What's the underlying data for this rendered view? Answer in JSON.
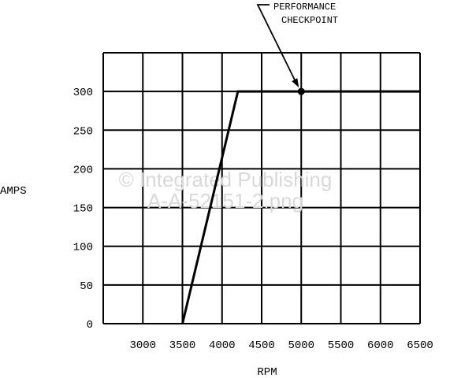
{
  "chart_data": {
    "type": "line",
    "xlabel": "RPM",
    "ylabel": "AMPS",
    "xlim": [
      2500,
      6500
    ],
    "ylim": [
      0,
      300
    ],
    "x_ticks": [
      3000,
      3500,
      4000,
      4500,
      5000,
      5500,
      6000,
      6500
    ],
    "y_ticks": [
      0,
      50,
      100,
      150,
      200,
      250,
      300
    ],
    "grid": true,
    "series": [
      {
        "x": [
          3500,
          4200,
          5000,
          6500
        ],
        "y": [
          0,
          300,
          300,
          300
        ]
      }
    ],
    "annotations": [
      {
        "text": [
          "PERFORMANCE",
          "CHECKPOINT"
        ],
        "point": {
          "x": 5000,
          "y": 300
        }
      }
    ],
    "watermark": [
      "© Integrated Publishing",
      "A-A-52151-2.png"
    ]
  }
}
